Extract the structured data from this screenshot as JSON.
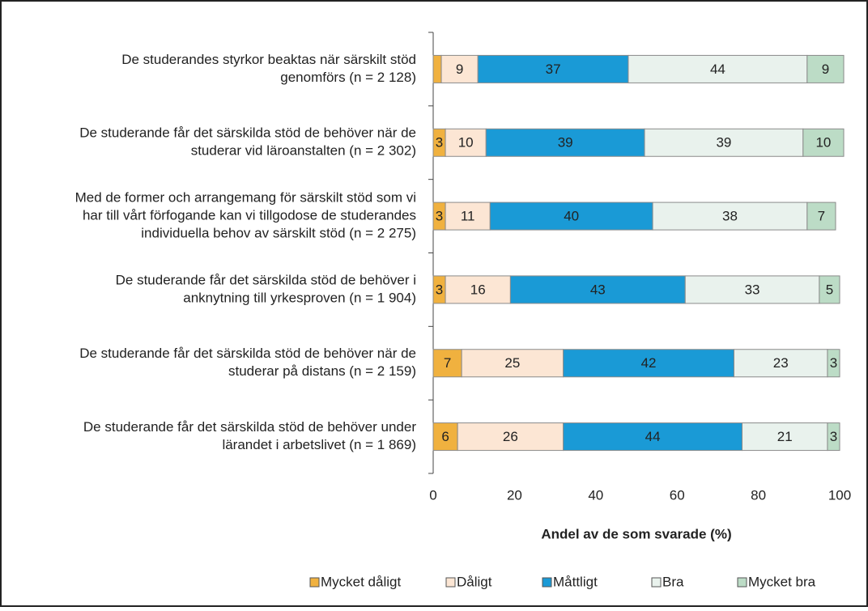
{
  "chart_data": {
    "type": "stacked_barh",
    "categories": [
      [
        "De studerandes styrkor beaktas när särskilt stöd",
        "genomförs (n = 2 128)"
      ],
      [
        "De studerande får det särskilda stöd de behöver när de",
        "studerar vid läroanstalten (n = 2 302)"
      ],
      [
        "Med de former och arrangemang för särskilt stöd som vi",
        "har till vårt förfogande kan vi tillgodose de studerandes",
        "individuella behov av särskilt stöd (n = 2 275)"
      ],
      [
        "De studerande får det särskilda stöd de behöver i",
        "anknytning till yrkesproven (n = 1 904)"
      ],
      [
        "De studerande får det särskilda stöd de behöver när de",
        "studerar på distans (n = 2 159)"
      ],
      [
        "De studerande får det särskilda stöd de behöver under",
        "lärandet i arbetslivet (n = 1 869)"
      ]
    ],
    "series": [
      {
        "name": "Mycket dåligt",
        "color": "#f0b13f",
        "values": [
          2,
          3,
          3,
          3,
          7,
          6
        ],
        "value_labels": [
          null,
          "3",
          "3",
          "3",
          "7",
          "6"
        ]
      },
      {
        "name": "Dåligt",
        "color": "#fce6d4",
        "values": [
          9,
          10,
          11,
          16,
          25,
          26
        ]
      },
      {
        "name": "Måttligt",
        "color": "#1a9ad6",
        "values": [
          37,
          39,
          40,
          43,
          42,
          44
        ]
      },
      {
        "name": "Bra",
        "color": "#e9f2ed",
        "values": [
          44,
          39,
          38,
          33,
          23,
          21
        ]
      },
      {
        "name": "Mycket bra",
        "color": "#bcdcc6",
        "values": [
          9,
          10,
          7,
          5,
          3,
          3
        ]
      }
    ],
    "xlim": [
      0,
      100
    ],
    "xticks": [
      0,
      20,
      40,
      60,
      80,
      100
    ],
    "xlabel": "Andel av de som svarade (%)",
    "legend": "bottom"
  }
}
